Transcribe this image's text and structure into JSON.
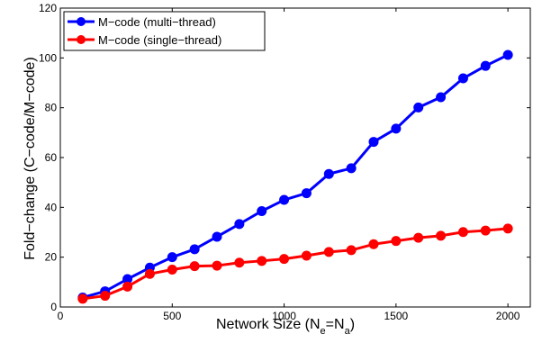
{
  "chart_data": {
    "type": "line",
    "xlabel_main": "Network Size (N",
    "xlabel_sub1": "e",
    "xlabel_mid": "=N",
    "xlabel_sub2": "a",
    "xlabel_end": ")",
    "ylabel": "Fold−change (C−code/M−code)",
    "xlim": [
      0,
      2100
    ],
    "ylim": [
      0,
      120
    ],
    "xticks": [
      0,
      500,
      1000,
      1500,
      2000
    ],
    "yticks": [
      0,
      20,
      40,
      60,
      80,
      100,
      120
    ],
    "legend_position": "top-left",
    "grid": false,
    "series": [
      {
        "name": "M−code (multi−thread)",
        "color": "#0000ff",
        "x": [
          100,
          200,
          300,
          400,
          500,
          600,
          700,
          800,
          900,
          1000,
          1100,
          1200,
          1300,
          1400,
          1500,
          1600,
          1700,
          1800,
          1900,
          2000
        ],
        "y": [
          3.8,
          6.3,
          11.2,
          15.8,
          20.0,
          23.2,
          28.2,
          33.3,
          38.5,
          43.0,
          45.7,
          53.4,
          55.7,
          66.3,
          71.6,
          80.1,
          84.2,
          91.8,
          96.8,
          101.2
        ]
      },
      {
        "name": "M−code (single−thread)",
        "color": "#ff0000",
        "x": [
          100,
          200,
          300,
          400,
          500,
          600,
          700,
          800,
          900,
          1000,
          1100,
          1200,
          1300,
          1400,
          1500,
          1600,
          1700,
          1800,
          1900,
          2000
        ],
        "y": [
          3.3,
          4.5,
          8.2,
          13.3,
          15.0,
          16.4,
          16.6,
          17.8,
          18.5,
          19.3,
          20.6,
          22.1,
          22.8,
          25.2,
          26.5,
          27.8,
          28.6,
          30.1,
          30.7,
          31.5
        ]
      }
    ]
  }
}
